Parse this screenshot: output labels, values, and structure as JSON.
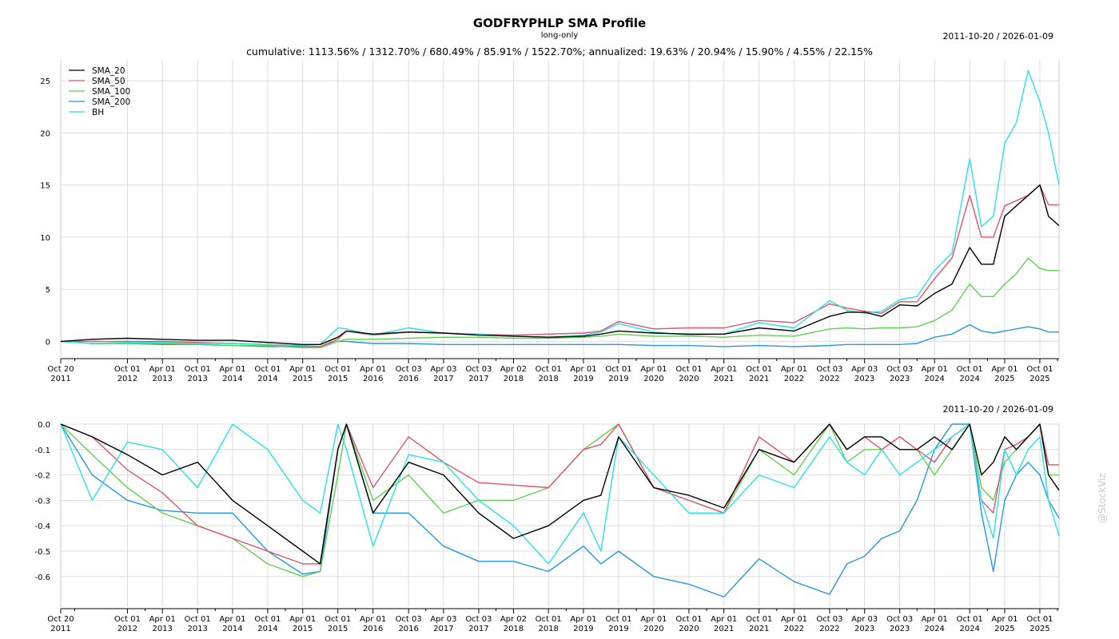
{
  "header": {
    "title": "GODFRYPHLP SMA Profile",
    "subtitle": "long-only",
    "summary": "cumulative: 1113.56% / 1312.70% / 680.49% / 85.91% / 1522.70%; annualized: 19.63% / 20.94% / 15.90% / 4.55% / 22.15%",
    "date_range": "2011-10-20 / 2026-01-09"
  },
  "watermark": "@StockViz",
  "colors": {
    "SMA_20": "#000000",
    "SMA_50": "#df536b",
    "SMA_100": "#61d04f",
    "SMA_200": "#2297e6",
    "BH": "#28e2e5"
  },
  "chart_data": [
    {
      "type": "line",
      "title": "GODFRYPHLP SMA Profile",
      "ylim": [
        -1.5,
        27
      ],
      "y_ticks": [
        0,
        5,
        10,
        15,
        20,
        25
      ],
      "grid": true,
      "legend_position": "top-left",
      "x_ticks": [
        "Oct 20\n2011",
        "Oct 01\n2012",
        "Apr 01\n2013",
        "Oct 01\n2013",
        "Apr 01\n2014",
        "Oct 01\n2014",
        "Apr 01\n2015",
        "Oct 01\n2015",
        "Apr 01\n2016",
        "Oct 03\n2016",
        "Apr 03\n2017",
        "Oct 03\n2017",
        "Apr 02\n2018",
        "Oct 01\n2018",
        "Apr 01\n2019",
        "Oct 01\n2019",
        "Apr 01\n2020",
        "Oct 01\n2020",
        "Apr 01\n2021",
        "Oct 01\n2021",
        "Apr 01\n2022",
        "Oct 03\n2022",
        "Apr 03\n2023",
        "Oct 03\n2023",
        "Apr 01\n2024",
        "Oct 01\n2024",
        "Apr 01\n2025",
        "Oct 01\n2025"
      ],
      "x": [
        "2011-10-20",
        "2012-04-01",
        "2012-10-01",
        "2013-04-01",
        "2013-10-01",
        "2014-04-01",
        "2014-10-01",
        "2015-04-01",
        "2015-07-01",
        "2015-10-01",
        "2015-11-15",
        "2016-04-01",
        "2016-10-03",
        "2017-04-03",
        "2017-10-03",
        "2018-04-02",
        "2018-10-01",
        "2019-04-01",
        "2019-07-01",
        "2019-10-01",
        "2020-04-01",
        "2020-10-01",
        "2021-04-01",
        "2021-10-01",
        "2022-04-01",
        "2022-10-03",
        "2023-01-01",
        "2023-04-03",
        "2023-07-01",
        "2023-10-03",
        "2024-01-01",
        "2024-04-01",
        "2024-07-01",
        "2024-10-01",
        "2024-12-01",
        "2025-02-01",
        "2025-04-01",
        "2025-06-01",
        "2025-08-01",
        "2025-10-01",
        "2025-11-15",
        "2026-01-09"
      ],
      "series": [
        {
          "name": "SMA_20",
          "values": [
            0,
            0.2,
            0.3,
            0.2,
            0.1,
            0.1,
            -0.1,
            -0.3,
            -0.3,
            0.4,
            1,
            0.7,
            0.9,
            0.8,
            0.6,
            0.5,
            0.4,
            0.5,
            0.7,
            1.0,
            0.8,
            0.7,
            0.7,
            1.3,
            1.0,
            2.4,
            2.8,
            2.8,
            2.4,
            3.5,
            3.4,
            4.6,
            5.5,
            9.0,
            7.4,
            7.4,
            12,
            13,
            14,
            15,
            12,
            11.1
          ]
        },
        {
          "name": "SMA_50",
          "values": [
            0,
            0,
            0,
            0,
            -0.1,
            -0.2,
            -0.3,
            -0.5,
            -0.5,
            0.2,
            1,
            0.6,
            0.9,
            0.8,
            0.7,
            0.6,
            0.7,
            0.8,
            1.0,
            1.9,
            1.2,
            1.3,
            1.3,
            2.0,
            1.8,
            3.6,
            3.2,
            2.9,
            2.7,
            3.8,
            3.8,
            6.0,
            8.0,
            14,
            10,
            10,
            13,
            13.5,
            14,
            15,
            13.1,
            13.1
          ]
        },
        {
          "name": "SMA_100",
          "values": [
            0,
            -0.2,
            -0.2,
            -0.2,
            -0.3,
            -0.4,
            -0.4,
            -0.6,
            -0.6,
            0,
            0.2,
            0.2,
            0.3,
            0.4,
            0.4,
            0.3,
            0.3,
            0.4,
            0.5,
            0.7,
            0.5,
            0.5,
            0.4,
            0.6,
            0.5,
            1.2,
            1.3,
            1.2,
            1.3,
            1.3,
            1.4,
            2.0,
            3.0,
            5.5,
            4.3,
            4.3,
            5.5,
            6.5,
            8.0,
            7.0,
            6.8,
            6.8
          ]
        },
        {
          "name": "SMA_200",
          "values": [
            0,
            -0.2,
            -0.2,
            -0.3,
            -0.3,
            -0.4,
            -0.5,
            -0.5,
            -0.5,
            0,
            0,
            -0.2,
            -0.2,
            -0.3,
            -0.3,
            -0.3,
            -0.3,
            -0.3,
            -0.3,
            -0.3,
            -0.4,
            -0.4,
            -0.5,
            -0.4,
            -0.5,
            -0.4,
            -0.3,
            -0.3,
            -0.3,
            -0.3,
            -0.2,
            0.4,
            0.7,
            1.6,
            1.0,
            0.8,
            1.0,
            1.2,
            1.4,
            1.2,
            0.9,
            0.9
          ]
        },
        {
          "name": "BH",
          "values": [
            0,
            -0.2,
            -0.1,
            -0.1,
            -0.2,
            -0.2,
            -0.3,
            -0.4,
            -0.3,
            1.3,
            1.2,
            0.6,
            1.3,
            0.8,
            0.7,
            0.5,
            0.4,
            0.6,
            0.9,
            1.7,
            0.9,
            0.6,
            0.7,
            1.8,
            1.3,
            3.9,
            3.0,
            2.7,
            2.9,
            4.0,
            4.3,
            6.8,
            8.5,
            17.5,
            11,
            12,
            19,
            21,
            26,
            23,
            20,
            15
          ]
        }
      ]
    },
    {
      "type": "line",
      "title": "",
      "ylim": [
        -0.72,
        0
      ],
      "y_ticks": [
        0.0,
        -0.1,
        -0.2,
        -0.3,
        -0.4,
        -0.5,
        -0.6
      ],
      "y_tick_labels": [
        "0.0",
        "-0.1",
        "-0.2",
        "-0.3",
        "-0.4",
        "-0.5",
        "-0.6"
      ],
      "grid": true,
      "x_ticks": [
        "Oct 20\n2011",
        "Oct 01\n2012",
        "Apr 01\n2013",
        "Oct 01\n2013",
        "Apr 01\n2014",
        "Oct 01\n2014",
        "Apr 01\n2015",
        "Oct 01\n2015",
        "Apr 01\n2016",
        "Oct 03\n2016",
        "Apr 03\n2017",
        "Oct 03\n2017",
        "Apr 02\n2018",
        "Oct 01\n2018",
        "Apr 01\n2019",
        "Oct 01\n2019",
        "Apr 01\n2020",
        "Oct 01\n2020",
        "Apr 01\n2021",
        "Oct 01\n2021",
        "Apr 01\n2022",
        "Oct 03\n2022",
        "Apr 03\n2023",
        "Oct 03\n2023",
        "Apr 01\n2024",
        "Oct 01\n2024",
        "Apr 01\n2025",
        "Oct 01\n2025"
      ],
      "x": [
        "2011-10-20",
        "2012-04-01",
        "2012-10-01",
        "2013-04-01",
        "2013-10-01",
        "2014-04-01",
        "2014-10-01",
        "2015-04-01",
        "2015-07-01",
        "2015-10-01",
        "2015-11-15",
        "2016-04-01",
        "2016-10-03",
        "2017-04-03",
        "2017-10-03",
        "2018-04-02",
        "2018-10-01",
        "2019-04-01",
        "2019-07-01",
        "2019-10-01",
        "2020-04-01",
        "2020-10-01",
        "2021-04-01",
        "2021-10-01",
        "2022-04-01",
        "2022-10-03",
        "2023-01-01",
        "2023-04-03",
        "2023-07-01",
        "2023-10-03",
        "2024-01-01",
        "2024-04-01",
        "2024-07-01",
        "2024-10-01",
        "2024-12-01",
        "2025-02-01",
        "2025-04-01",
        "2025-06-01",
        "2025-08-01",
        "2025-10-01",
        "2025-11-15",
        "2026-01-09"
      ],
      "series": [
        {
          "name": "SMA_20",
          "values": [
            0,
            -0.05,
            -0.12,
            -0.2,
            -0.15,
            -0.3,
            -0.4,
            -0.5,
            -0.55,
            -0.1,
            0,
            -0.35,
            -0.15,
            -0.2,
            -0.35,
            -0.45,
            -0.4,
            -0.3,
            -0.28,
            -0.05,
            -0.25,
            -0.28,
            -0.33,
            -0.1,
            -0.15,
            0,
            -0.1,
            -0.05,
            -0.05,
            -0.1,
            -0.1,
            -0.05,
            -0.1,
            0,
            -0.2,
            -0.15,
            -0.05,
            -0.1,
            -0.05,
            0,
            -0.2,
            -0.26
          ]
        },
        {
          "name": "SMA_50",
          "values": [
            0,
            -0.05,
            -0.18,
            -0.27,
            -0.4,
            -0.45,
            -0.5,
            -0.55,
            -0.55,
            -0.1,
            0,
            -0.25,
            -0.05,
            -0.15,
            -0.23,
            -0.24,
            -0.25,
            -0.1,
            -0.08,
            0,
            -0.25,
            -0.3,
            -0.35,
            -0.05,
            -0.15,
            0,
            -0.1,
            -0.05,
            -0.1,
            -0.05,
            -0.1,
            -0.15,
            -0.05,
            0,
            -0.3,
            -0.35,
            -0.1,
            -0.08,
            -0.05,
            0,
            -0.16,
            -0.16
          ]
        },
        {
          "name": "SMA_100",
          "values": [
            0,
            -0.12,
            -0.25,
            -0.35,
            -0.4,
            -0.45,
            -0.55,
            -0.6,
            -0.58,
            -0.2,
            0,
            -0.3,
            -0.2,
            -0.35,
            -0.3,
            -0.3,
            -0.25,
            -0.1,
            -0.05,
            0,
            -0.25,
            -0.3,
            -0.35,
            -0.1,
            -0.2,
            0,
            -0.15,
            -0.1,
            -0.1,
            -0.05,
            -0.1,
            -0.2,
            -0.1,
            0,
            -0.25,
            -0.3,
            -0.15,
            -0.1,
            -0.05,
            0,
            -0.2,
            -0.2
          ]
        },
        {
          "name": "SMA_200",
          "values": [
            0,
            -0.2,
            -0.3,
            -0.34,
            -0.35,
            -0.35,
            -0.5,
            -0.59,
            -0.58,
            -0.1,
            0,
            -0.35,
            -0.35,
            -0.48,
            -0.54,
            -0.54,
            -0.58,
            -0.48,
            -0.55,
            -0.5,
            -0.6,
            -0.63,
            -0.68,
            -0.53,
            -0.62,
            -0.67,
            -0.55,
            -0.52,
            -0.45,
            -0.42,
            -0.3,
            -0.1,
            0,
            0,
            -0.35,
            -0.58,
            -0.3,
            -0.2,
            -0.15,
            -0.2,
            -0.3,
            -0.37
          ]
        },
        {
          "name": "BH",
          "values": [
            0,
            -0.3,
            -0.07,
            -0.1,
            -0.25,
            0,
            -0.1,
            -0.3,
            -0.35,
            0,
            -0.1,
            -0.48,
            -0.12,
            -0.15,
            -0.3,
            -0.4,
            -0.55,
            -0.35,
            -0.5,
            -0.05,
            -0.2,
            -0.35,
            -0.35,
            -0.2,
            -0.25,
            -0.05,
            -0.15,
            -0.2,
            -0.1,
            -0.2,
            -0.15,
            -0.1,
            -0.05,
            0,
            -0.3,
            -0.45,
            -0.1,
            -0.2,
            -0.1,
            -0.05,
            -0.3,
            -0.44
          ]
        }
      ]
    }
  ]
}
